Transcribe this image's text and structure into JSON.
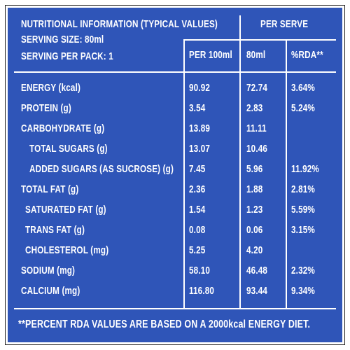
{
  "header": {
    "title": "NUTRITIONAL INFORMATION (TYPICAL VALUES)",
    "serving_size": "SERVING SIZE: 80ml",
    "serving_per_pack": "SERVING PER PACK: 1",
    "per_serve": "PER SERVE",
    "col_per100": "PER 100ml",
    "col_80ml": "80ml",
    "col_rda": "%RDA**"
  },
  "rows": [
    {
      "label": "ENERGY (kcal)",
      "per100": "90.92",
      "serve": "72.74",
      "rda": "3.64%"
    },
    {
      "label": "PROTEIN (g)",
      "per100": "3.54",
      "serve": "2.83",
      "rda": "5.24%"
    },
    {
      "label": "CARBOHYDRATE (g)",
      "per100": "13.89",
      "serve": "11.11",
      "rda": ""
    },
    {
      "label": "TOTAL SUGARS (g)",
      "per100": "13.07",
      "serve": "10.46",
      "rda": ""
    },
    {
      "label": "ADDED SUGARS (AS SUCROSE) (g)",
      "per100": "7.45",
      "serve": "5.96",
      "rda": "11.92%"
    },
    {
      "label": "TOTAL FAT (g)",
      "per100": "2.36",
      "serve": "1.88",
      "rda": "2.81%"
    },
    {
      "label": "SATURATED FAT (g)",
      "per100": "1.54",
      "serve": "1.23",
      "rda": "5.59%"
    },
    {
      "label": "TRANS FAT (g)",
      "per100": "0.08",
      "serve": "0.06",
      "rda": "3.15%"
    },
    {
      "label": "CHOLESTEROL (mg)",
      "per100": "5.25",
      "serve": "4.20",
      "rda": ""
    },
    {
      "label": "SODIUM (mg)",
      "per100": "58.10",
      "serve": "46.48",
      "rda": "2.32%"
    },
    {
      "label": "CALCIUM (mg)",
      "per100": "116.80",
      "serve": "93.44",
      "rda": "9.34%"
    }
  ],
  "footnote": "**PERCENT RDA VALUES ARE BASED ON A 2000kcal ENERGY DIET.",
  "colors": {
    "background": "#2f55b8",
    "text": "#ffffff"
  }
}
